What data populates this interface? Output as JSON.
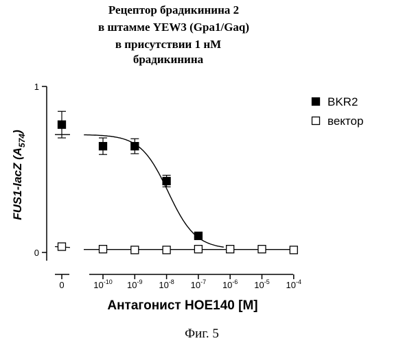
{
  "chart_data": {
    "type": "scatter",
    "title_lines": [
      "Рецептор брадикинина 2",
      "в штамме YEW3 (Gpa1/Gaq)",
      "в присутствии 1 нМ",
      "брадикинина"
    ],
    "xlabel": "Антагонист HOE140 [M]",
    "ylabel_main": "FUS1-lacZ (A",
    "ylabel_sub": "574",
    "ylabel_close": ")",
    "x_scale": "log",
    "x_ticks": [
      {
        "value": 0,
        "base": "0",
        "exp": ""
      },
      {
        "value": 1e-10,
        "base": "10",
        "exp": "-10"
      },
      {
        "value": 1e-09,
        "base": "10",
        "exp": "-9"
      },
      {
        "value": 1e-08,
        "base": "10",
        "exp": "-8"
      },
      {
        "value": 1e-07,
        "base": "10",
        "exp": "-7"
      },
      {
        "value": 1e-06,
        "base": "10",
        "exp": "-6"
      },
      {
        "value": 1e-05,
        "base": "10",
        "exp": "-5"
      },
      {
        "value": 0.0001,
        "base": "10",
        "exp": "-4"
      }
    ],
    "y_ticks": [
      {
        "value": 0,
        "label": "0"
      },
      {
        "value": 1,
        "label": "1"
      }
    ],
    "ylim": [
      0,
      1
    ],
    "grid": false,
    "legend_position": "top-right",
    "series": [
      {
        "name": "BKR2",
        "marker": "filled-square",
        "points": [
          {
            "x": 0,
            "y": 0.77,
            "err": 0.08
          },
          {
            "x": 1e-10,
            "y": 0.64,
            "err": 0.05
          },
          {
            "x": 1e-09,
            "y": 0.64,
            "err": 0.045
          },
          {
            "x": 1e-08,
            "y": 0.43,
            "err": 0.035
          },
          {
            "x": 1e-07,
            "y": 0.1,
            "err": 0.01
          }
        ],
        "fit": {
          "top": 0.71,
          "bottom": 0.02,
          "log_ic50": -7.95,
          "hill": 1
        }
      },
      {
        "name": "вектор",
        "marker": "open-square",
        "points": [
          {
            "x": 0,
            "y": 0.035,
            "err": 0
          },
          {
            "x": 1e-10,
            "y": 0.02,
            "err": 0
          },
          {
            "x": 1e-09,
            "y": 0.015,
            "err": 0
          },
          {
            "x": 1e-08,
            "y": 0.015,
            "err": 0
          },
          {
            "x": 1e-07,
            "y": 0.02,
            "err": 0
          },
          {
            "x": 1e-06,
            "y": 0.02,
            "err": 0
          },
          {
            "x": 1e-05,
            "y": 0.02,
            "err": 0
          },
          {
            "x": 0.0001,
            "y": 0.015,
            "err": 0
          }
        ],
        "fit": {
          "level": 0.018
        }
      }
    ]
  },
  "caption": "Фиг. 5"
}
